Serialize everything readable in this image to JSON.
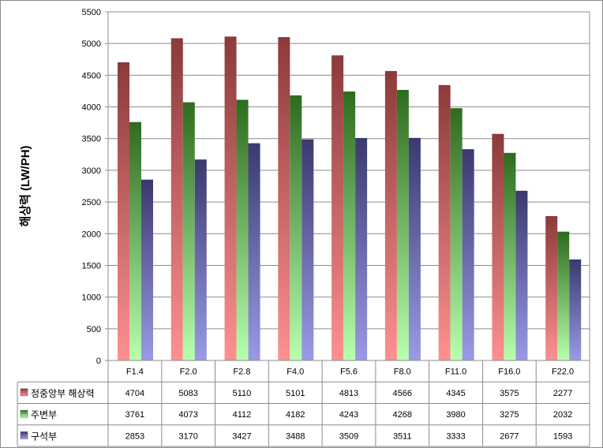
{
  "chart_data": {
    "type": "bar",
    "title": "",
    "xlabel": "",
    "ylabel": "해상력 (LW/PH)",
    "ylim": [
      0,
      5500
    ],
    "ytick_step": 500,
    "grid": true,
    "legend": "data-table-left",
    "categories": [
      "F1.4",
      "F2.0",
      "F2.8",
      "F4.0",
      "F5.6",
      "F8.0",
      "F11.0",
      "F16.0",
      "F22.0"
    ],
    "series": [
      {
        "name": "정중앙부 해상력",
        "color_top": "#8b3a3a",
        "color_bottom": "#ff9090",
        "values": [
          4704,
          5083,
          5110,
          5101,
          4813,
          4566,
          4345,
          3575,
          2277
        ]
      },
      {
        "name": "주변부",
        "color_top": "#2e6b1e",
        "color_bottom": "#b8ffb0",
        "values": [
          3761,
          4073,
          4112,
          4182,
          4243,
          4268,
          3980,
          3275,
          2032
        ]
      },
      {
        "name": "구석부",
        "color_top": "#3a3a6e",
        "color_bottom": "#9a9ae6",
        "values": [
          2853,
          3170,
          3427,
          3488,
          3509,
          3511,
          3333,
          2677,
          1593
        ]
      }
    ]
  }
}
